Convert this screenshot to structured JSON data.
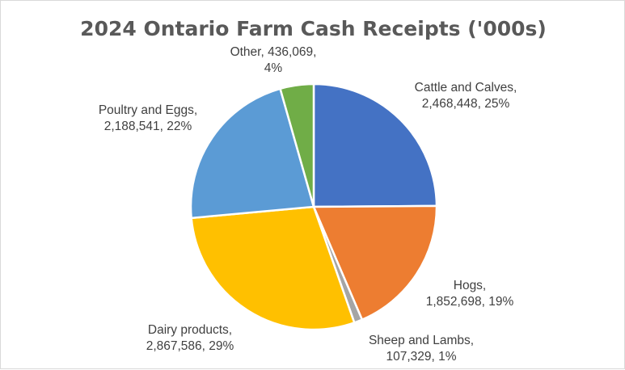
{
  "chart_data": {
    "type": "pie",
    "title": "2024 Ontario Farm Cash Receipts ('000s)",
    "slices": [
      {
        "name": "Cattle and Calves",
        "value": 2468448,
        "value_label": "2,468,448",
        "percent_label": "25%",
        "color": "#4472C4"
      },
      {
        "name": "Hogs",
        "value": 1852698,
        "value_label": "1,852,698",
        "percent_label": "19%",
        "color": "#ED7D31"
      },
      {
        "name": "Sheep and Lambs",
        "value": 107329,
        "value_label": "107,329",
        "percent_label": "1%",
        "color": "#A5A5A5"
      },
      {
        "name": "Dairy products",
        "value": 2867586,
        "value_label": "2,867,586",
        "percent_label": "29%",
        "color": "#FFC000"
      },
      {
        "name": "Poultry and Eggs",
        "value": 2188541,
        "value_label": "2,188,541",
        "percent_label": "22%",
        "color": "#5B9BD5"
      },
      {
        "name": "Other",
        "value": 436069,
        "value_label": "436,069",
        "percent_label": "4%",
        "color": "#70AD47"
      }
    ],
    "legend": "none",
    "data_labels": "outside"
  }
}
